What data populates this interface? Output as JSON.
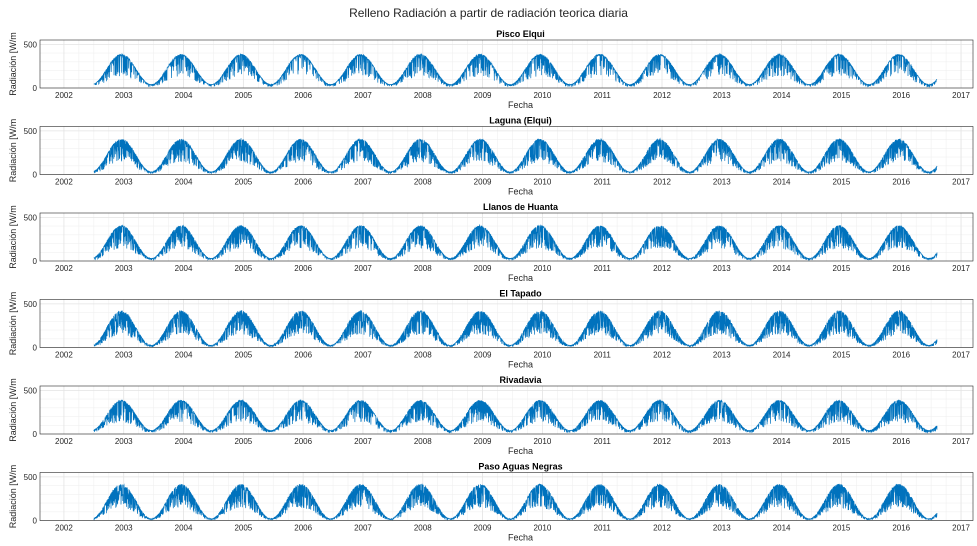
{
  "figure": {
    "suptitle": "Relleno Radiación a partir de radiación teorica diaria"
  },
  "chart_data": [
    {
      "type": "line",
      "title": "Pisco Elqui",
      "xlabel": "Fecha",
      "ylabel": "Radiación [W/m",
      "x_ticks": [
        "2002",
        "2003",
        "2004",
        "2005",
        "2006",
        "2007",
        "2008",
        "2009",
        "2010",
        "2011",
        "2012",
        "2013",
        "2014",
        "2015",
        "2016",
        "2017"
      ],
      "y_ticks": [
        0,
        500
      ],
      "xlim": [
        2001.6,
        2017.2
      ],
      "ylim": [
        0,
        550
      ],
      "x_start": 2002.5,
      "x_end": 2016.6,
      "series": [
        {
          "amplitude": 175,
          "mean": 215,
          "dip_strength": 0.35,
          "color": "#0072BD"
        }
      ],
      "grid": true
    },
    {
      "type": "line",
      "title": "Laguna (Elqui)",
      "xlabel": "Fecha",
      "ylabel": "Radiación [W/m",
      "x_ticks": [
        "2002",
        "2003",
        "2004",
        "2005",
        "2006",
        "2007",
        "2008",
        "2009",
        "2010",
        "2011",
        "2012",
        "2013",
        "2014",
        "2015",
        "2016",
        "2017"
      ],
      "y_ticks": [
        0,
        500
      ],
      "xlim": [
        2001.6,
        2017.2
      ],
      "ylim": [
        0,
        550
      ],
      "x_start": 2002.5,
      "x_end": 2016.6,
      "series": [
        {
          "amplitude": 190,
          "mean": 220,
          "dip_strength": 0.5,
          "color": "#0072BD"
        }
      ],
      "grid": true
    },
    {
      "type": "line",
      "title": "Llanos de Huanta",
      "xlabel": "Fecha",
      "ylabel": "Radiación [W/m",
      "x_ticks": [
        "2002",
        "2003",
        "2004",
        "2005",
        "2006",
        "2007",
        "2008",
        "2009",
        "2010",
        "2011",
        "2012",
        "2013",
        "2014",
        "2015",
        "2016",
        "2017"
      ],
      "y_ticks": [
        0,
        500
      ],
      "xlim": [
        2001.6,
        2017.2
      ],
      "ylim": [
        0,
        550
      ],
      "x_start": 2002.5,
      "x_end": 2016.6,
      "series": [
        {
          "amplitude": 190,
          "mean": 220,
          "dip_strength": 0.5,
          "color": "#0072BD"
        }
      ],
      "grid": true
    },
    {
      "type": "line",
      "title": "El Tapado",
      "xlabel": "Fecha",
      "ylabel": "Radiación [W/m",
      "x_ticks": [
        "2002",
        "2003",
        "2004",
        "2005",
        "2006",
        "2007",
        "2008",
        "2009",
        "2010",
        "2011",
        "2012",
        "2013",
        "2014",
        "2015",
        "2016",
        "2017"
      ],
      "y_ticks": [
        0,
        500
      ],
      "xlim": [
        2001.6,
        2017.2
      ],
      "ylim": [
        0,
        550
      ],
      "x_start": 2002.5,
      "x_end": 2016.6,
      "series": [
        {
          "amplitude": 200,
          "mean": 225,
          "dip_strength": 0.6,
          "color": "#0072BD"
        }
      ],
      "grid": true
    },
    {
      "type": "line",
      "title": "Rivadavia",
      "xlabel": "Fecha",
      "ylabel": "Radiación [W/m",
      "x_ticks": [
        "2002",
        "2003",
        "2004",
        "2005",
        "2006",
        "2007",
        "2008",
        "2009",
        "2010",
        "2011",
        "2012",
        "2013",
        "2014",
        "2015",
        "2016",
        "2017"
      ],
      "y_ticks": [
        0,
        500
      ],
      "xlim": [
        2001.6,
        2017.2
      ],
      "ylim": [
        0,
        550
      ],
      "x_start": 2002.5,
      "x_end": 2016.6,
      "series": [
        {
          "amplitude": 175,
          "mean": 215,
          "dip_strength": 0.45,
          "color": "#0072BD"
        }
      ],
      "grid": true
    },
    {
      "type": "line",
      "title": "Paso Aguas Negras",
      "xlabel": "Fecha",
      "ylabel": "Radiación [W/m",
      "x_ticks": [
        "2002",
        "2003",
        "2004",
        "2005",
        "2006",
        "2007",
        "2008",
        "2009",
        "2010",
        "2011",
        "2012",
        "2013",
        "2014",
        "2015",
        "2016",
        "2017"
      ],
      "y_ticks": [
        0,
        500
      ],
      "xlim": [
        2001.6,
        2017.2
      ],
      "ylim": [
        0,
        550
      ],
      "x_start": 2002.5,
      "x_end": 2016.6,
      "series": [
        {
          "amplitude": 200,
          "mean": 220,
          "dip_strength": 0.6,
          "color": "#0072BD"
        }
      ],
      "grid": true
    }
  ]
}
